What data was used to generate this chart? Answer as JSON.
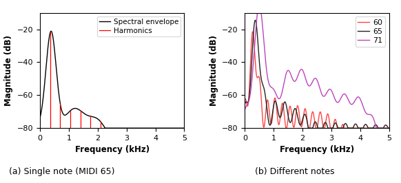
{
  "fig_width": 5.82,
  "fig_height": 2.66,
  "dpi": 100,
  "ylim": [
    -80,
    -10
  ],
  "xlim": [
    0,
    5
  ],
  "yticks": [
    -80,
    -60,
    -40,
    -20
  ],
  "xticks": [
    0,
    1,
    2,
    3,
    4,
    5
  ],
  "xlabel": "Frequency (kHz)",
  "ylabel": "Magnitude (dB)",
  "caption_a": "(a) Single note (MIDI 65)",
  "caption_b": "(b) Different notes",
  "harmonics_color": "#ff0000",
  "envelope_color": "#000000",
  "legend_envelope": "Spectral envelope",
  "legend_harmonics": "Harmonics",
  "legend_60": "60",
  "legend_65": "65",
  "legend_71": "71",
  "color_60": "#ff4444",
  "color_65": "#222222",
  "color_71": "#bb44bb"
}
